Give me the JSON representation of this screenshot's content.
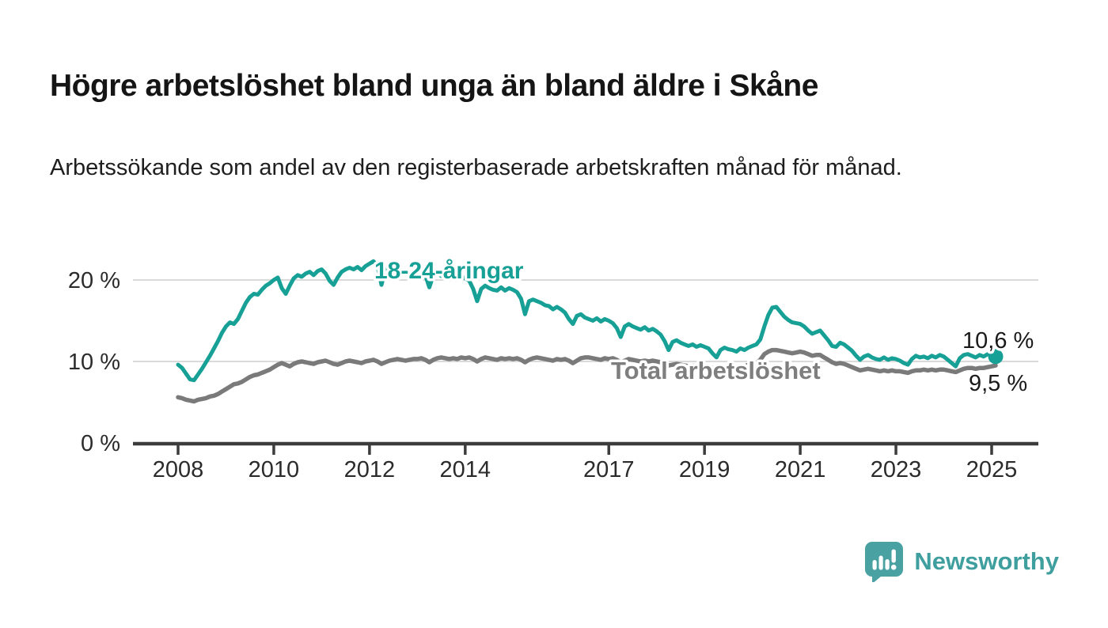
{
  "page": {
    "title": "Högre arbetslöshet bland unga än bland äldre i Skåne",
    "subtitle": "Arbetssökande som andel av den registerbaserade arbetskraften månad för månad."
  },
  "branding": {
    "logo_text": "Newsworthy",
    "logo_icon": "bar-chart-speech-bubble-icon",
    "brand_color": "#3f9e9e"
  },
  "colors": {
    "young_line": "#17a096",
    "total_line": "#7a7a7a",
    "gridline": "#dadada",
    "axis": "#3c3c3c",
    "tick_label": "#2b2b2b",
    "end_label_text": "#1a1a1a",
    "background": "#ffffff"
  },
  "chart_data": {
    "type": "line",
    "title": "Högre arbetslöshet bland unga än bland äldre i Skåne",
    "xlabel": "",
    "ylabel": "",
    "unit": "%",
    "grid": "horizontal",
    "legend_position": "inline-labels",
    "x_start_year": 2008,
    "x_step_months": 1,
    "xlim": [
      2007.6,
      2025.9
    ],
    "ylim": [
      0,
      23.5
    ],
    "y_ticks": [
      {
        "value": 0,
        "label": "0 %"
      },
      {
        "value": 10,
        "label": "10 %"
      },
      {
        "value": 20,
        "label": "20 %"
      }
    ],
    "x_ticks": [
      {
        "value": 2008,
        "label": "2008"
      },
      {
        "value": 2010,
        "label": "2010"
      },
      {
        "value": 2012,
        "label": "2012"
      },
      {
        "value": 2014,
        "label": "2014"
      },
      {
        "value": 2017,
        "label": "2017"
      },
      {
        "value": 2019,
        "label": "2019"
      },
      {
        "value": 2021,
        "label": "2021"
      },
      {
        "value": 2023,
        "label": "2023"
      },
      {
        "value": 2025,
        "label": "2025"
      }
    ],
    "series": [
      {
        "name": "Total arbetslöshet",
        "color": "#7a7a7a",
        "label_color": "#7e7e7e",
        "end_label": "9,5 %",
        "end_dot": false,
        "values": [
          5.6,
          5.5,
          5.3,
          5.2,
          5.1,
          5.3,
          5.4,
          5.5,
          5.7,
          5.8,
          6.0,
          6.3,
          6.6,
          6.9,
          7.2,
          7.3,
          7.5,
          7.8,
          8.1,
          8.3,
          8.4,
          8.6,
          8.8,
          9.0,
          9.3,
          9.6,
          9.8,
          9.6,
          9.4,
          9.7,
          9.9,
          10.0,
          9.9,
          9.8,
          9.7,
          9.9,
          10.0,
          10.1,
          9.9,
          9.7,
          9.6,
          9.8,
          10.0,
          10.1,
          10.0,
          9.9,
          9.8,
          10.0,
          10.1,
          10.2,
          10.0,
          9.7,
          9.9,
          10.1,
          10.2,
          10.3,
          10.2,
          10.1,
          10.2,
          10.3,
          10.3,
          10.4,
          10.2,
          9.9,
          10.2,
          10.4,
          10.5,
          10.4,
          10.3,
          10.4,
          10.3,
          10.5,
          10.4,
          10.5,
          10.3,
          10.0,
          10.3,
          10.5,
          10.4,
          10.3,
          10.2,
          10.4,
          10.3,
          10.4,
          10.3,
          10.4,
          10.2,
          9.9,
          10.2,
          10.4,
          10.5,
          10.4,
          10.3,
          10.2,
          10.1,
          10.3,
          10.2,
          10.3,
          10.1,
          9.8,
          10.1,
          10.4,
          10.5,
          10.5,
          10.4,
          10.3,
          10.2,
          10.4,
          10.3,
          10.4,
          10.2,
          9.9,
          10.1,
          10.3,
          10.2,
          10.1,
          10.0,
          10.1,
          10.0,
          10.1,
          10.0,
          9.9,
          9.7,
          9.5,
          9.6,
          9.7,
          9.6,
          9.5,
          9.4,
          9.5,
          9.4,
          9.5,
          9.4,
          9.3,
          9.2,
          9.0,
          9.2,
          9.3,
          9.4,
          9.4,
          9.3,
          9.4,
          9.4,
          9.6,
          9.7,
          9.8,
          10.2,
          10.9,
          11.2,
          11.4,
          11.4,
          11.3,
          11.2,
          11.1,
          11.0,
          11.1,
          11.2,
          11.1,
          10.9,
          10.7,
          10.8,
          10.8,
          10.5,
          10.2,
          9.9,
          9.7,
          9.8,
          9.7,
          9.5,
          9.3,
          9.1,
          8.9,
          9.0,
          9.1,
          9.0,
          8.9,
          8.8,
          8.9,
          8.8,
          8.9,
          8.8,
          8.8,
          8.7,
          8.6,
          8.8,
          8.9,
          8.9,
          9.0,
          8.9,
          9.0,
          8.9,
          9.0,
          9.0,
          8.9,
          8.8,
          8.7,
          8.9,
          9.1,
          9.2,
          9.2,
          9.1,
          9.2,
          9.2,
          9.3,
          9.4,
          9.5
        ]
      },
      {
        "name": "18-24-åringar",
        "color": "#17a096",
        "label_color": "#17a096",
        "end_label": "10,6 %",
        "end_dot": true,
        "values": [
          9.6,
          9.2,
          8.5,
          7.8,
          7.7,
          8.4,
          9.1,
          9.9,
          10.7,
          11.6,
          12.5,
          13.5,
          14.3,
          14.8,
          14.6,
          15.2,
          16.2,
          17.2,
          17.9,
          18.3,
          18.2,
          18.8,
          19.3,
          19.6,
          20.0,
          20.3,
          19.0,
          18.3,
          19.3,
          20.2,
          20.6,
          20.4,
          20.8,
          21.0,
          20.6,
          21.1,
          21.3,
          20.8,
          19.9,
          19.4,
          20.3,
          21.0,
          21.3,
          21.5,
          21.3,
          21.6,
          21.2,
          21.7,
          22.0,
          22.3,
          21.7,
          19.4,
          21.3,
          21.6,
          21.2,
          21.0,
          20.8,
          21.1,
          20.7,
          21.0,
          21.4,
          21.2,
          20.6,
          19.1,
          20.6,
          20.9,
          20.5,
          20.3,
          20.1,
          20.5,
          20.1,
          20.4,
          20.2,
          19.9,
          18.9,
          17.4,
          18.9,
          19.3,
          19.0,
          18.8,
          18.7,
          19.1,
          18.7,
          19.0,
          18.8,
          18.5,
          17.7,
          15.8,
          17.4,
          17.6,
          17.4,
          17.2,
          16.9,
          16.8,
          16.4,
          16.7,
          16.4,
          16.0,
          15.2,
          14.6,
          15.6,
          15.8,
          15.4,
          15.2,
          15.0,
          15.3,
          14.9,
          15.2,
          15.0,
          14.7,
          14.1,
          13.0,
          14.3,
          14.6,
          14.3,
          14.1,
          13.9,
          14.2,
          13.8,
          14.0,
          13.7,
          13.3,
          12.5,
          11.4,
          12.4,
          12.6,
          12.3,
          12.1,
          11.9,
          12.1,
          11.8,
          12.0,
          11.8,
          11.6,
          11.0,
          10.5,
          11.4,
          11.7,
          11.5,
          11.4,
          11.2,
          11.6,
          11.4,
          11.7,
          11.9,
          12.1,
          12.7,
          14.3,
          15.7,
          16.6,
          16.7,
          16.1,
          15.5,
          15.1,
          14.8,
          14.7,
          14.6,
          14.3,
          13.8,
          13.4,
          13.6,
          13.8,
          13.2,
          12.6,
          11.9,
          11.8,
          12.3,
          12.1,
          11.7,
          11.3,
          10.7,
          10.2,
          10.6,
          10.8,
          10.5,
          10.3,
          10.2,
          10.5,
          10.2,
          10.4,
          10.3,
          10.1,
          9.8,
          9.6,
          10.3,
          10.7,
          10.5,
          10.6,
          10.4,
          10.7,
          10.5,
          10.8,
          10.6,
          10.2,
          9.8,
          9.4,
          10.4,
          10.8,
          10.9,
          10.7,
          10.5,
          10.8,
          10.6,
          10.9,
          10.8,
          10.6
        ]
      }
    ]
  }
}
